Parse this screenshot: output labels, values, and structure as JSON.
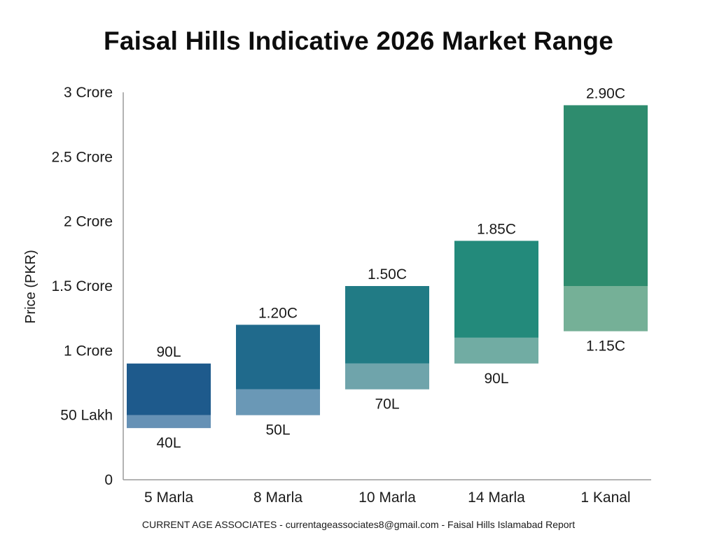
{
  "chart_data": {
    "type": "bar",
    "subtype": "floating-range",
    "title": "Faisal Hills Indicative 2026 Market Range",
    "ylabel": "Price (PKR)",
    "xlabel": "",
    "ylim": [
      0,
      3
    ],
    "y_unit": "Crore",
    "yticks": [
      {
        "value": 0,
        "label": "0"
      },
      {
        "value": 0.5,
        "label": "50 Lakh"
      },
      {
        "value": 1,
        "label": "1 Crore"
      },
      {
        "value": 1.5,
        "label": "1.5 Crore"
      },
      {
        "value": 2,
        "label": "2 Crore"
      },
      {
        "value": 2.5,
        "label": "2.5 Crore"
      },
      {
        "value": 3,
        "label": "3 Crore"
      }
    ],
    "grid": false,
    "categories": [
      "5 Marla",
      "8 Marla",
      "10 Marla",
      "14 Marla",
      "1 Kanal"
    ],
    "series": [
      {
        "values": [
          0.4,
          0.5,
          0.7,
          0.9,
          1.15
        ],
        "labels": [
          "40L",
          "50L",
          "70L",
          "90L",
          "1.15C"
        ]
      },
      {
        "values": [
          0.9,
          1.2,
          1.5,
          1.85,
          2.9
        ],
        "labels": [
          "90L",
          "1.20C",
          "1.50C",
          "1.85C",
          "2.90C"
        ]
      }
    ],
    "split_values": [
      0.5,
      0.7,
      0.9,
      1.1,
      1.5
    ],
    "colors": {
      "upper": [
        "#1e5a8c",
        "#206a8c",
        "#217b85",
        "#238a7b",
        "#2e8c6e"
      ],
      "lower": [
        "#6691b5",
        "#6a98b6",
        "#6fa4ab",
        "#71aca3",
        "#75b097"
      ]
    }
  },
  "footer": "CURRENT AGE ASSOCIATES - currentageassociates8@gmail.com - Faisal Hills Islamabad Report"
}
